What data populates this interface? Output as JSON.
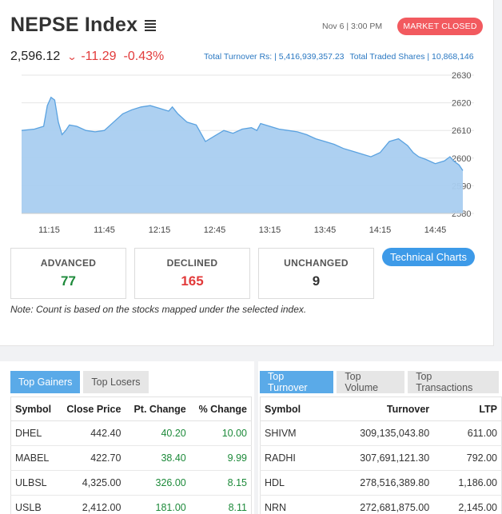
{
  "header": {
    "title": "NEPSE Index",
    "datetime": "Nov 6 | 3:00 PM",
    "market_status": "MARKET CLOSED",
    "index_value": "2,596.12",
    "point_change": "-11.29",
    "percent_change": "-0.43%",
    "total_turnover": "Total Turnover Rs: | 5,416,939,357.23",
    "total_traded_shares": "Total Traded Shares | 10,868,146"
  },
  "colors": {
    "accent": "#3d9ae8",
    "negative": "#e23b3b",
    "positive": "#1d8a3a",
    "area_fill": "#a9cdf0",
    "area_line": "#5aa2e0"
  },
  "chart_data": {
    "type": "area",
    "ylim": [
      2580,
      2630
    ],
    "y_ticks": [
      "2630",
      "2620",
      "2610",
      "2600",
      "2590",
      "2580"
    ],
    "x_ticks": [
      "11:15",
      "11:45",
      "12:15",
      "12:45",
      "13:15",
      "13:45",
      "14:15",
      "14:45"
    ],
    "x_range_minutes": [
      660,
      900
    ],
    "grid": true,
    "series": [
      {
        "x": [
          660,
          667,
          672,
          674,
          676,
          678,
          680,
          682,
          684,
          686,
          690,
          695,
          700,
          705,
          710,
          715,
          720,
          725,
          730,
          735,
          740,
          742,
          745,
          750,
          755,
          760,
          765,
          770,
          775,
          780,
          785,
          788,
          790,
          795,
          800,
          805,
          810,
          815,
          820,
          825,
          830,
          835,
          840,
          845,
          850,
          855,
          860,
          865,
          870,
          873,
          876,
          880,
          885,
          890,
          893,
          895,
          898,
          900
        ],
        "y": [
          2610,
          2610.5,
          2611.5,
          2619,
          2622,
          2621,
          2613,
          2608.5,
          2610,
          2612,
          2611.5,
          2610,
          2609.5,
          2610,
          2613,
          2616,
          2617.5,
          2618.5,
          2619,
          2618,
          2617,
          2618.5,
          2616,
          2613,
          2612,
          2606,
          2608,
          2610,
          2609,
          2610.5,
          2611,
          2610,
          2612.5,
          2611.5,
          2610.5,
          2610,
          2609.5,
          2608.5,
          2607,
          2606,
          2605,
          2603.5,
          2602.5,
          2601.5,
          2600.5,
          2602,
          2606,
          2607,
          2604.5,
          2602,
          2600.5,
          2599.5,
          2598,
          2599,
          2600.5,
          2599,
          2597.5,
          2595.5
        ]
      }
    ]
  },
  "summary": {
    "advanced_label": "ADVANCED",
    "advanced": "77",
    "declined_label": "DECLINED",
    "declined": "165",
    "unchanged_label": "UNCHANGED",
    "unchanged": "9",
    "technical_charts_label": "Technical Charts",
    "note": "Note: Count is based on the stocks mapped under the selected index."
  },
  "gainers_panel": {
    "tabs": [
      "Top Gainers",
      "Top Losers"
    ],
    "columns": [
      "Symbol",
      "Close Price",
      "Pt. Change",
      "% Change"
    ],
    "rows": [
      [
        "DHEL",
        "442.40",
        "40.20",
        "10.00"
      ],
      [
        "MABEL",
        "422.70",
        "38.40",
        "9.99"
      ],
      [
        "ULBSL",
        "4,325.00",
        "326.00",
        "8.15"
      ],
      [
        "USLB",
        "2,412.00",
        "181.00",
        "8.11"
      ]
    ]
  },
  "turnover_panel": {
    "tabs": [
      "Top Turnover",
      "Top Volume",
      "Top Transactions"
    ],
    "columns": [
      "Symbol",
      "Turnover",
      "LTP"
    ],
    "rows": [
      [
        "SHIVM",
        "309,135,043.80",
        "611.00"
      ],
      [
        "RADHI",
        "307,691,121.30",
        "792.00"
      ],
      [
        "HDL",
        "278,516,389.80",
        "1,186.00"
      ],
      [
        "NRN",
        "272,681,875.00",
        "2,145.00"
      ]
    ]
  }
}
